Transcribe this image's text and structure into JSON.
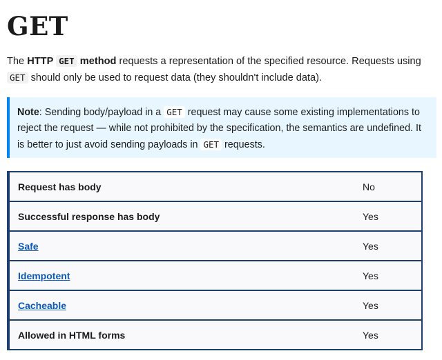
{
  "page": {
    "title": "GET",
    "intro": {
      "part1": "The ",
      "strong_http": "HTTP ",
      "strong_code": "GET",
      "strong_method": " method",
      "part2": " requests a representation of the specified resource. Requests using ",
      "code": "GET",
      "part3": " should only be used to request data (they shouldn't include data)."
    },
    "note": {
      "label": "Note",
      "part1": ": Sending body/payload in a ",
      "code1": "GET",
      "part2": " request may cause some existing implementations to reject the request — while not prohibited by the specification, the semantics are undefined. It is better to just avoid sending payloads in ",
      "code2": "GET",
      "part3": " requests."
    },
    "properties": [
      {
        "label": "Request has body",
        "value": "No",
        "link": false
      },
      {
        "label": "Successful response has body",
        "value": "Yes",
        "link": false
      },
      {
        "label": "Safe",
        "value": "Yes",
        "link": true
      },
      {
        "label": "Idempotent",
        "value": "Yes",
        "link": true
      },
      {
        "label": "Cacheable",
        "value": "Yes",
        "link": true
      },
      {
        "label": "Allowed in HTML forms",
        "value": "Yes",
        "link": false
      }
    ]
  }
}
